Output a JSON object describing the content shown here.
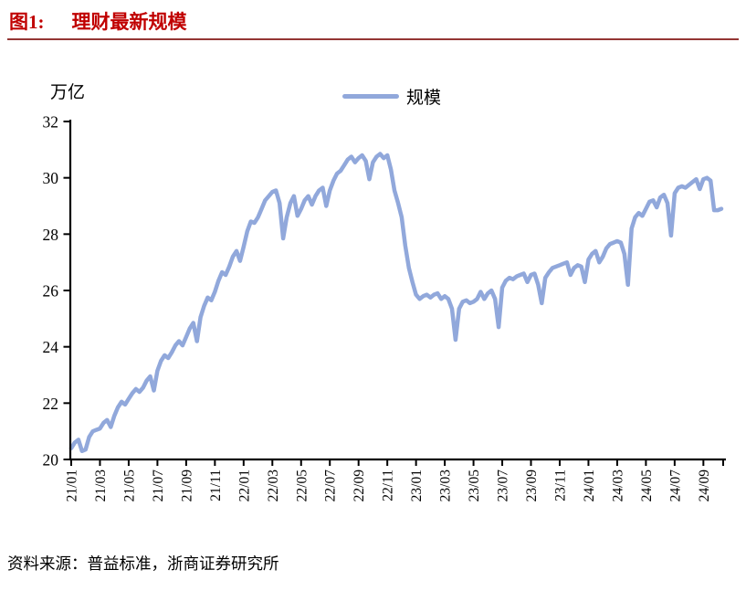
{
  "page": {
    "title_prefix": "图1:",
    "title": "理财最新规模",
    "source": "资料来源：普益标准，浙商证券研究所"
  },
  "chart_data": {
    "type": "line",
    "title": "图1: 理财最新规模",
    "unit_label": "万亿",
    "legend": [
      "规模"
    ],
    "legend_position": "top-center",
    "grid": false,
    "ylim": [
      20,
      32
    ],
    "yticks": [
      20,
      22,
      24,
      26,
      28,
      30,
      32
    ],
    "x_tick_labels": [
      "21/01",
      "21/03",
      "21/05",
      "21/07",
      "21/09",
      "21/11",
      "22/01",
      "22/03",
      "22/05",
      "22/07",
      "22/09",
      "22/11",
      "23/01",
      "23/03",
      "23/05",
      "23/07",
      "23/09",
      "23/11",
      "24/01",
      "24/03",
      "24/05",
      "24/07",
      "24/09"
    ],
    "points_per_month": 4,
    "label_every_n_months": 2,
    "series": [
      {
        "name": "规模",
        "values": [
          20.4,
          20.6,
          20.7,
          20.3,
          20.35,
          20.8,
          21.0,
          21.05,
          21.1,
          21.3,
          21.4,
          21.15,
          21.55,
          21.85,
          22.05,
          21.95,
          22.15,
          22.35,
          22.5,
          22.4,
          22.55,
          22.8,
          22.95,
          22.45,
          23.15,
          23.5,
          23.7,
          23.6,
          23.8,
          24.05,
          24.2,
          24.05,
          24.35,
          24.65,
          24.85,
          24.2,
          25.05,
          25.45,
          25.75,
          25.65,
          25.95,
          26.35,
          26.65,
          26.55,
          26.85,
          27.2,
          27.4,
          27.05,
          27.55,
          28.1,
          28.45,
          28.4,
          28.6,
          28.9,
          29.2,
          29.35,
          29.5,
          29.55,
          29.1,
          27.85,
          28.6,
          29.1,
          29.35,
          28.65,
          28.9,
          29.2,
          29.35,
          29.05,
          29.35,
          29.55,
          29.65,
          29.0,
          29.55,
          29.9,
          30.15,
          30.25,
          30.45,
          30.65,
          30.75,
          30.55,
          30.7,
          30.8,
          30.6,
          29.95,
          30.55,
          30.75,
          30.85,
          30.7,
          30.8,
          30.3,
          29.55,
          29.1,
          28.6,
          27.6,
          26.8,
          26.3,
          25.85,
          25.7,
          25.8,
          25.85,
          25.75,
          25.85,
          25.9,
          25.7,
          25.8,
          25.7,
          25.35,
          24.25,
          25.35,
          25.6,
          25.65,
          25.55,
          25.6,
          25.7,
          25.95,
          25.7,
          25.9,
          26.0,
          25.7,
          24.7,
          26.1,
          26.35,
          26.45,
          26.4,
          26.5,
          26.55,
          26.6,
          26.3,
          26.55,
          26.6,
          26.2,
          25.55,
          26.45,
          26.65,
          26.8,
          26.85,
          26.9,
          26.95,
          27.0,
          26.55,
          26.8,
          26.9,
          26.85,
          26.3,
          27.1,
          27.3,
          27.4,
          27.0,
          27.2,
          27.5,
          27.65,
          27.7,
          27.75,
          27.7,
          27.3,
          26.2,
          28.2,
          28.6,
          28.75,
          28.65,
          28.9,
          29.15,
          29.2,
          28.95,
          29.3,
          29.4,
          29.1,
          27.95,
          29.45,
          29.65,
          29.7,
          29.65,
          29.75,
          29.85,
          29.95,
          29.6,
          29.95,
          30.0,
          29.9,
          28.85,
          28.85,
          28.9
        ]
      }
    ],
    "colors": {
      "line": "#91A8DB",
      "title": "#C00000",
      "rule": "#943634",
      "axis": "#000000",
      "text": "#000000"
    }
  }
}
